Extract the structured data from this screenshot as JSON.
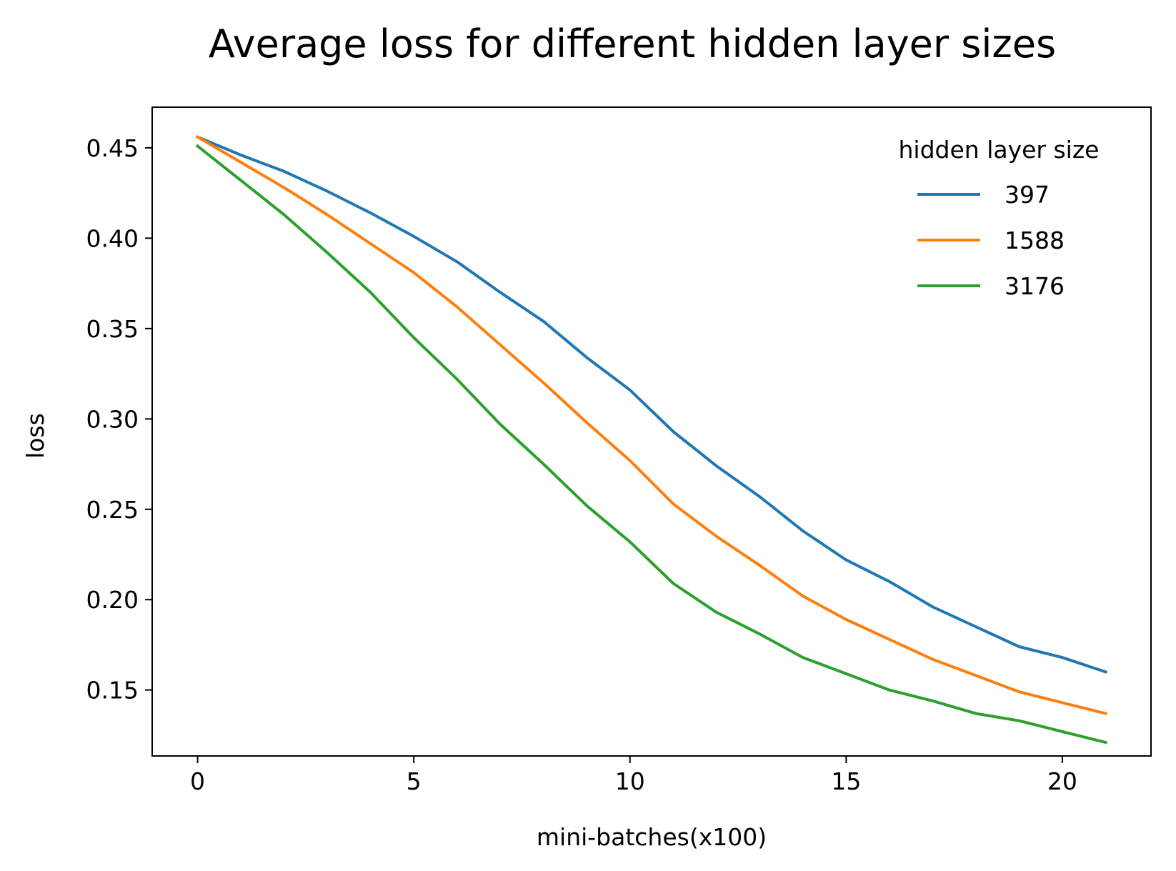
{
  "chart_data": {
    "type": "line",
    "title": "Average loss for different hidden layer sizes",
    "xlabel": "mini-batches(x100)",
    "ylabel": "loss",
    "xlim": [
      -1.05,
      22.05
    ],
    "ylim": [
      0.1135,
      0.4725
    ],
    "xticks": [
      0,
      5,
      10,
      15,
      20
    ],
    "xtick_labels": [
      "0",
      "5",
      "10",
      "15",
      "20"
    ],
    "yticks": [
      0.15,
      0.2,
      0.25,
      0.3,
      0.35,
      0.4,
      0.45
    ],
    "ytick_labels": [
      "0.15",
      "0.20",
      "0.25",
      "0.30",
      "0.35",
      "0.40",
      "0.45"
    ],
    "grid": false,
    "legend": {
      "title": "hidden layer size",
      "placement": "top-right",
      "frame": false
    },
    "x": [
      0,
      1,
      2,
      3,
      4,
      5,
      6,
      7,
      8,
      9,
      10,
      11,
      12,
      13,
      14,
      15,
      16,
      17,
      18,
      19,
      20,
      21
    ],
    "series": [
      {
        "name": "397",
        "color": "#1f77b4",
        "values": [
          0.456,
          0.446,
          0.437,
          0.426,
          0.414,
          0.401,
          0.387,
          0.37,
          0.354,
          0.334,
          0.316,
          0.293,
          0.274,
          0.257,
          0.238,
          0.222,
          0.21,
          0.196,
          0.185,
          0.174,
          0.168,
          0.16
        ]
      },
      {
        "name": "1588",
        "color": "#ff7f0e",
        "values": [
          0.456,
          0.442,
          0.428,
          0.413,
          0.397,
          0.381,
          0.362,
          0.341,
          0.32,
          0.298,
          0.277,
          0.253,
          0.235,
          0.219,
          0.202,
          0.189,
          0.178,
          0.167,
          0.158,
          0.149,
          0.143,
          0.137
        ]
      },
      {
        "name": "3176",
        "color": "#2ca02c",
        "values": [
          0.451,
          0.432,
          0.413,
          0.392,
          0.37,
          0.345,
          0.322,
          0.297,
          0.275,
          0.252,
          0.232,
          0.209,
          0.193,
          0.181,
          0.168,
          0.159,
          0.15,
          0.144,
          0.137,
          0.133,
          0.127,
          0.121
        ]
      }
    ]
  }
}
